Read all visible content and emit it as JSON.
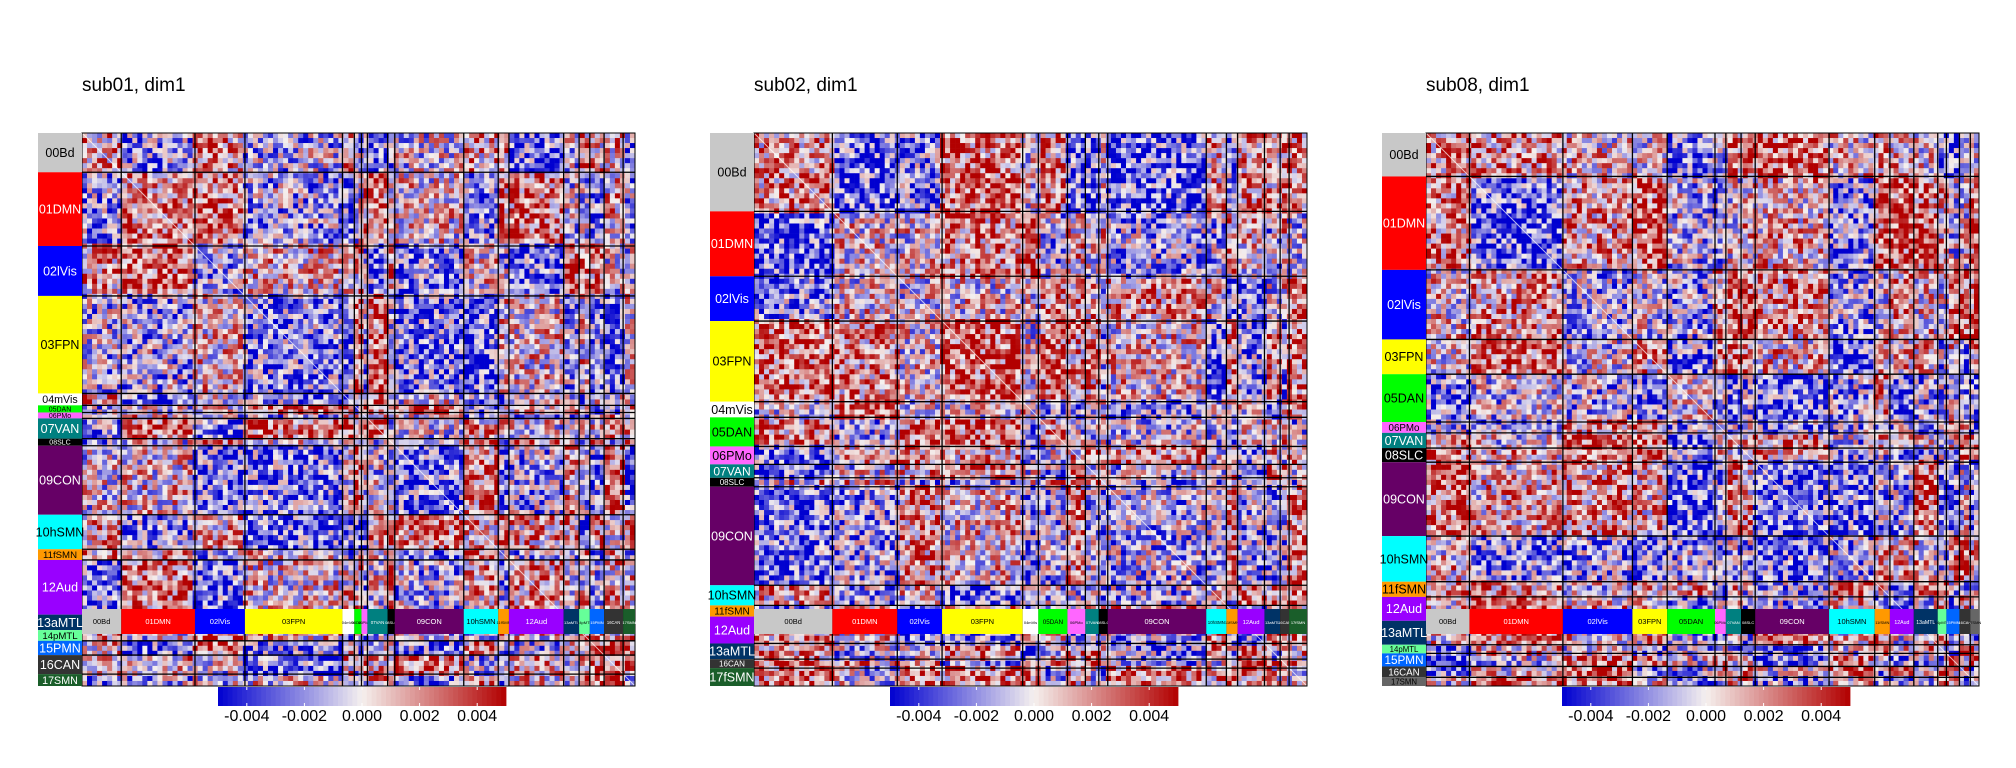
{
  "chart_data": [
    {
      "type": "heatmap",
      "title": "sub01, dim1",
      "networks": [
        {
          "label": "00Bd",
          "size": 33,
          "color": "#c8c8c8"
        },
        {
          "label": "01DMN",
          "size": 62,
          "color": "#ff0000"
        },
        {
          "label": "02lVis",
          "size": 42,
          "color": "#0000ff"
        },
        {
          "label": "03FPN",
          "size": 82,
          "color": "#ffff00"
        },
        {
          "label": "04mVis",
          "size": 10,
          "color": "#ffffff"
        },
        {
          "label": "05DAN",
          "size": 6,
          "color": "#00ff00"
        },
        {
          "label": "06PMo",
          "size": 5,
          "color": "#ff66ff"
        },
        {
          "label": "07VAN",
          "size": 17,
          "color": "#008080"
        },
        {
          "label": "08SLC",
          "size": 6,
          "color": "#000000"
        },
        {
          "label": "09CON",
          "size": 58,
          "color": "#660066"
        },
        {
          "label": "10hSMN",
          "size": 29,
          "color": "#00ffff"
        },
        {
          "label": "11fSMN",
          "size": 9,
          "color": "#ff9900"
        },
        {
          "label": "12Aud",
          "size": 46,
          "color": "#9900ff"
        },
        {
          "label": "13aMTL",
          "size": 13,
          "color": "#003366"
        },
        {
          "label": "14pMTL",
          "size": 9,
          "color": "#66ff99"
        },
        {
          "label": "15PMN",
          "size": 12,
          "color": "#0066ff"
        },
        {
          "label": "16CAN",
          "size": 16,
          "color": "#333333"
        },
        {
          "label": "17SMN",
          "size": 10,
          "color": "#1a5e2a"
        }
      ],
      "colorbar": {
        "min": -0.005,
        "max": 0.005,
        "ticks": [
          "-0.004",
          "-0.002",
          "0.000",
          "0.002",
          "0.004"
        ],
        "tick_values": [
          -0.004,
          -0.002,
          0,
          0.002,
          0.004
        ],
        "colors": [
          "#0000d0",
          "#f5f0ee",
          "#b20000"
        ]
      }
    },
    {
      "type": "heatmap",
      "title": "sub02, dim1",
      "networks": [
        {
          "label": "00Bd",
          "size": 70,
          "color": "#c8c8c8"
        },
        {
          "label": "01DMN",
          "size": 58,
          "color": "#ff0000"
        },
        {
          "label": "02lVis",
          "size": 40,
          "color": "#0000ff"
        },
        {
          "label": "03FPN",
          "size": 72,
          "color": "#ffff00"
        },
        {
          "label": "04mVis",
          "size": 14,
          "color": "#ffffff"
        },
        {
          "label": "05DAN",
          "size": 26,
          "color": "#00ff00"
        },
        {
          "label": "06PMo",
          "size": 16,
          "color": "#ff66ff"
        },
        {
          "label": "07VAN",
          "size": 12,
          "color": "#008080"
        },
        {
          "label": "08SLC",
          "size": 8,
          "color": "#000000"
        },
        {
          "label": "09CON",
          "size": 88,
          "color": "#660066"
        },
        {
          "label": "10hSMN",
          "size": 18,
          "color": "#00ffff"
        },
        {
          "label": "11fSMN",
          "size": 10,
          "color": "#ff9900"
        },
        {
          "label": "12Aud",
          "size": 24,
          "color": "#9900ff"
        },
        {
          "label": "13aMTL",
          "size": 14,
          "color": "#003366"
        },
        {
          "label": "16CAN",
          "size": 8,
          "color": "#333333"
        },
        {
          "label": "17fSMN",
          "size": 16,
          "color": "#1a5e2a"
        }
      ],
      "colorbar": {
        "min": -0.005,
        "max": 0.005,
        "ticks": [
          "-0.004",
          "-0.002",
          "0.000",
          "0.002",
          "0.004"
        ],
        "tick_values": [
          -0.004,
          -0.002,
          0,
          0.002,
          0.004
        ],
        "colors": [
          "#0000d0",
          "#f5f0ee",
          "#b20000"
        ]
      }
    },
    {
      "type": "heatmap",
      "title": "sub08, dim1",
      "networks": [
        {
          "label": "00Bd",
          "size": 40,
          "color": "#c8c8c8"
        },
        {
          "label": "01DMN",
          "size": 86,
          "color": "#ff0000"
        },
        {
          "label": "02lVis",
          "size": 64,
          "color": "#0000ff"
        },
        {
          "label": "03FPN",
          "size": 32,
          "color": "#ffff00"
        },
        {
          "label": "05DAN",
          "size": 44,
          "color": "#00ff00"
        },
        {
          "label": "06PMo",
          "size": 10,
          "color": "#ff66ff"
        },
        {
          "label": "07VAN",
          "size": 14,
          "color": "#008080"
        },
        {
          "label": "08SLC",
          "size": 13,
          "color": "#000000"
        },
        {
          "label": "09CON",
          "size": 68,
          "color": "#660066"
        },
        {
          "label": "10hSMN",
          "size": 42,
          "color": "#00ffff"
        },
        {
          "label": "11fSMN",
          "size": 14,
          "color": "#ff9900"
        },
        {
          "label": "12Aud",
          "size": 22,
          "color": "#9900ff"
        },
        {
          "label": "13aMTL",
          "size": 22,
          "color": "#003366"
        },
        {
          "label": "14pMTL",
          "size": 8,
          "color": "#66ff99"
        },
        {
          "label": "15PMN",
          "size": 12,
          "color": "#0066ff"
        },
        {
          "label": "16CAN",
          "size": 10,
          "color": "#333333"
        },
        {
          "label": "17SMN",
          "size": 8,
          "color": "#666666"
        }
      ],
      "colorbar": {
        "min": -0.005,
        "max": 0.005,
        "ticks": [
          "-0.004",
          "-0.002",
          "0.000",
          "0.002",
          "0.004"
        ],
        "tick_values": [
          -0.004,
          -0.002,
          0,
          0.002,
          0.004
        ],
        "colors": [
          "#0000d0",
          "#f5f0ee",
          "#b20000"
        ]
      }
    }
  ]
}
